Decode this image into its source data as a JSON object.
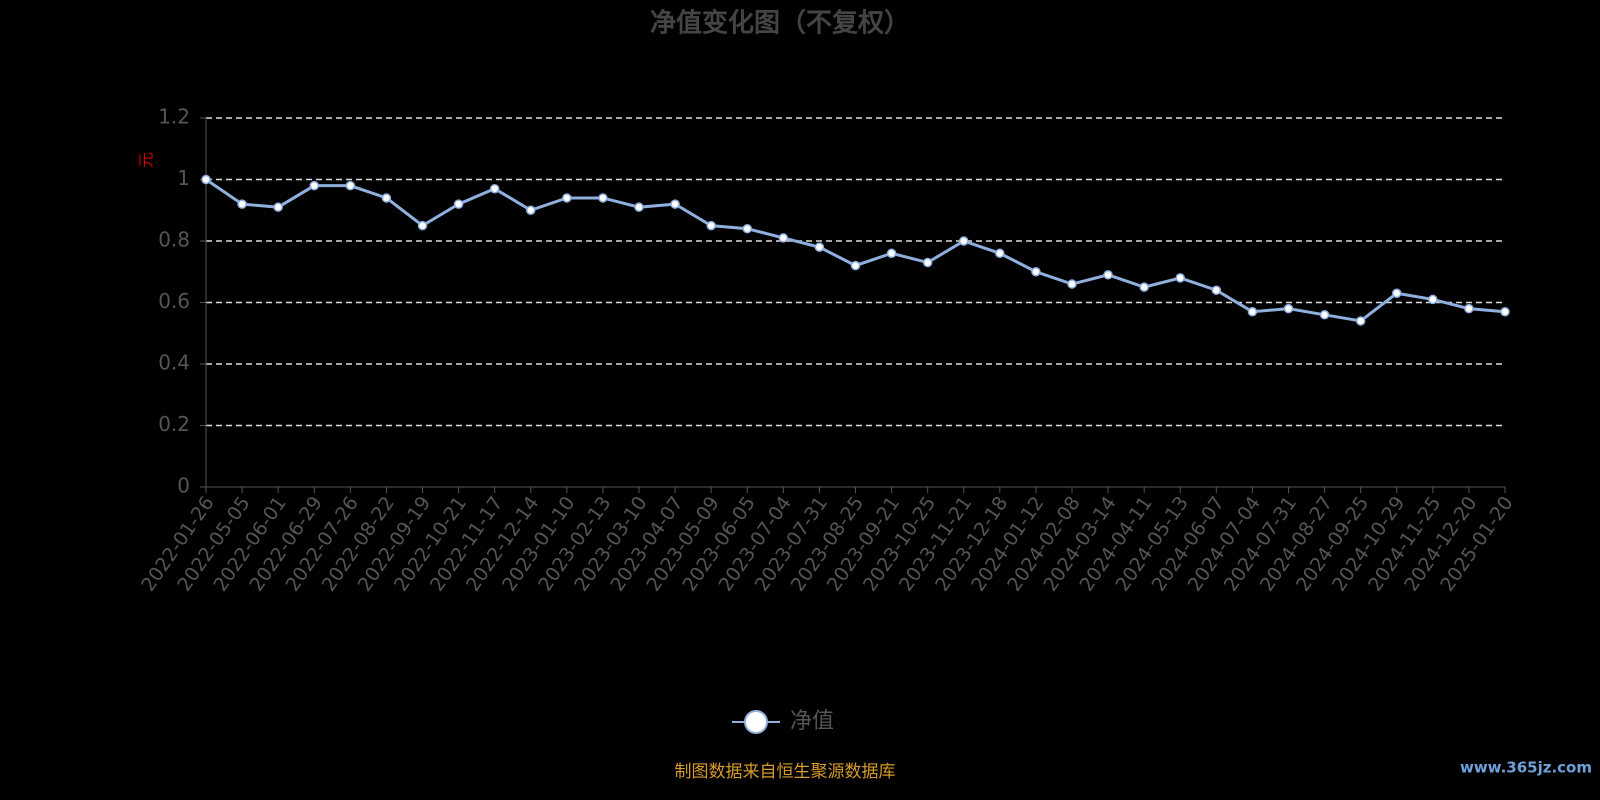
{
  "chart_data": {
    "type": "line",
    "title": "净值变化图（不复权）",
    "y_label": "元",
    "source": "制图数据来自恒生聚源数据库",
    "watermark": "www.365jz.com",
    "categories": [
      "2022-01-26",
      "2022-05-05",
      "2022-06-01",
      "2022-06-29",
      "2022-07-26",
      "2022-08-22",
      "2022-09-19",
      "2022-10-21",
      "2022-11-17",
      "2022-12-14",
      "2023-01-10",
      "2023-02-13",
      "2023-03-10",
      "2023-04-07",
      "2023-05-09",
      "2023-06-05",
      "2023-07-04",
      "2023-07-31",
      "2023-08-25",
      "2023-09-21",
      "2023-10-25",
      "2023-11-21",
      "2023-12-18",
      "2024-01-12",
      "2024-02-08",
      "2024-03-14",
      "2024-04-11",
      "2024-05-13",
      "2024-06-07",
      "2024-07-04",
      "2024-07-31",
      "2024-08-27",
      "2024-09-25",
      "2024-10-29",
      "2024-11-25",
      "2024-12-20",
      "2025-01-20"
    ],
    "series": [
      {
        "name": "净值",
        "color": "#8fb0de",
        "values": [
          1.0,
          0.92,
          0.91,
          0.98,
          0.98,
          0.94,
          0.85,
          0.92,
          0.97,
          0.9,
          0.94,
          0.94,
          0.91,
          0.92,
          0.85,
          0.84,
          0.81,
          0.78,
          0.72,
          0.76,
          0.73,
          0.8,
          0.76,
          0.7,
          0.66,
          0.69,
          0.65,
          0.68,
          0.64,
          0.57,
          0.58,
          0.56,
          0.54,
          0.63,
          0.61,
          0.58,
          0.57
        ]
      }
    ],
    "ylim": [
      0,
      1.2
    ],
    "yticks": [
      0,
      0.2,
      0.4,
      0.6,
      0.8,
      1,
      1.2
    ],
    "grid": true
  }
}
